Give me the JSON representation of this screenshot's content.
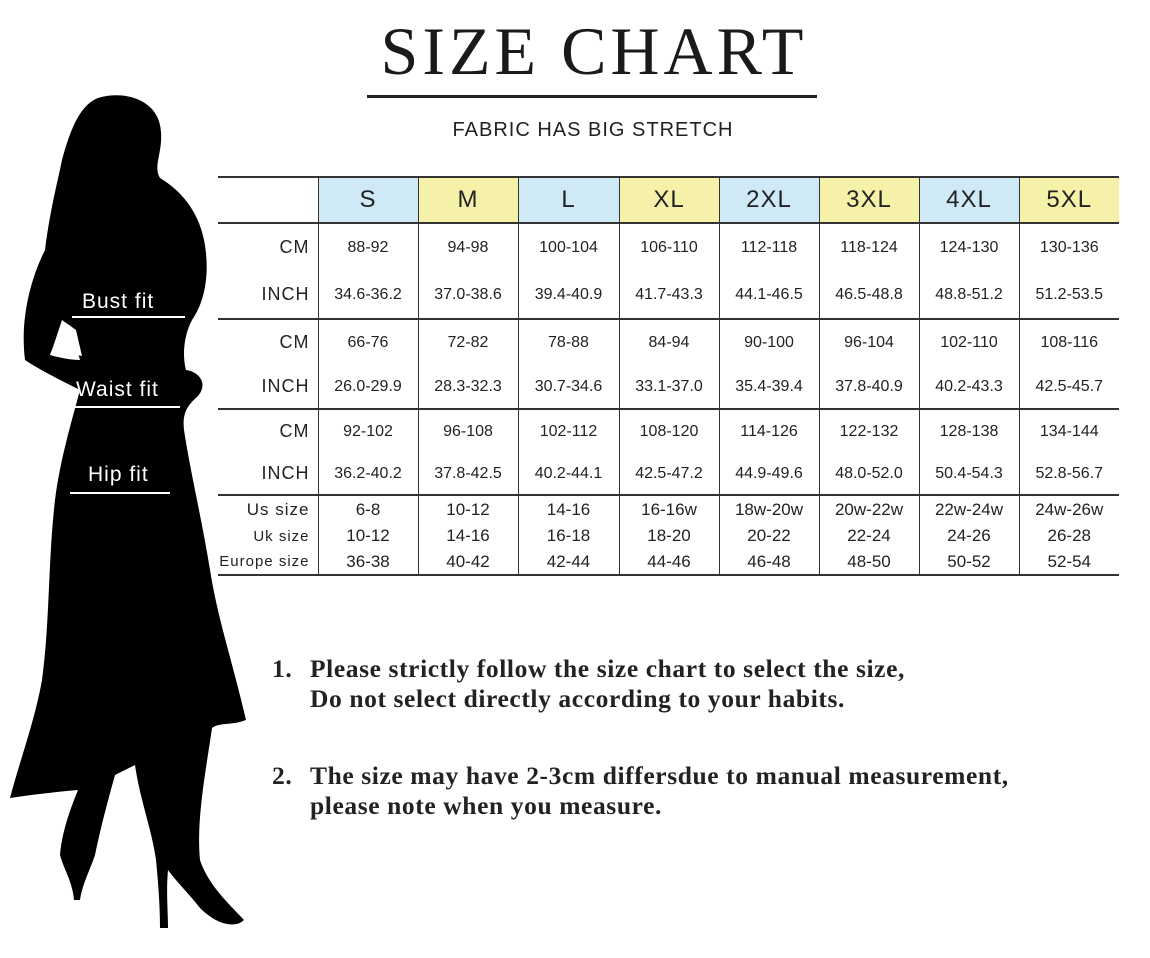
{
  "title": "SIZE CHART",
  "subtitle": "FABRIC HAS BIG STRETCH",
  "colors": {
    "blue_header": "#cfe9f7",
    "yellow_header": "#f6f1a9"
  },
  "fit_labels": {
    "bust": "Bust fit",
    "waist": "Waist fit",
    "hip": "Hip fit"
  },
  "sizes": [
    "S",
    "M",
    "L",
    "XL",
    "2XL",
    "3XL",
    "4XL",
    "5XL"
  ],
  "groups": [
    {
      "rows": [
        {
          "label": "CM",
          "values": [
            "88-92",
            "94-98",
            "100-104",
            "106-110",
            "112-118",
            "118-124",
            "124-130",
            "130-136"
          ]
        },
        {
          "label": "INCH",
          "values": [
            "34.6-36.2",
            "37.0-38.6",
            "39.4-40.9",
            "41.7-43.3",
            "44.1-46.5",
            "46.5-48.8",
            "48.8-51.2",
            "51.2-53.5"
          ]
        }
      ]
    },
    {
      "rows": [
        {
          "label": "CM",
          "values": [
            "66-76",
            "72-82",
            "78-88",
            "84-94",
            "90-100",
            "96-104",
            "102-110",
            "108-116"
          ]
        },
        {
          "label": "INCH",
          "values": [
            "26.0-29.9",
            "28.3-32.3",
            "30.7-34.6",
            "33.1-37.0",
            "35.4-39.4",
            "37.8-40.9",
            "40.2-43.3",
            "42.5-45.7"
          ]
        }
      ]
    },
    {
      "rows": [
        {
          "label": "CM",
          "values": [
            "92-102",
            "96-108",
            "102-112",
            "108-120",
            "114-126",
            "122-132",
            "128-138",
            "134-144"
          ]
        },
        {
          "label": "INCH",
          "values": [
            "36.2-40.2",
            "37.8-42.5",
            "40.2-44.1",
            "42.5-47.2",
            "44.9-49.6",
            "48.0-52.0",
            "50.4-54.3",
            "52.8-56.7"
          ]
        }
      ]
    },
    {
      "rows": [
        {
          "label": "Us size",
          "values": [
            "6-8",
            "10-12",
            "14-16",
            "16-16w",
            "18w-20w",
            "20w-22w",
            "22w-24w",
            "24w-26w"
          ]
        },
        {
          "label": "Uk size",
          "values": [
            "10-12",
            "14-16",
            "16-18",
            "18-20",
            "20-22",
            "22-24",
            "24-26",
            "26-28"
          ]
        },
        {
          "label": "Europe size",
          "values": [
            "36-38",
            "40-42",
            "42-44",
            "44-46",
            "46-48",
            "48-50",
            "50-52",
            "52-54"
          ]
        }
      ]
    }
  ],
  "notes": [
    {
      "num": "1.",
      "lines": [
        "Please strictly follow the size chart to select the size,",
        "Do not select directly according to your habits."
      ]
    },
    {
      "num": "2.",
      "lines": [
        "The size may have 2-3cm differsdue to manual measurement,",
        "please note when you measure."
      ]
    }
  ]
}
